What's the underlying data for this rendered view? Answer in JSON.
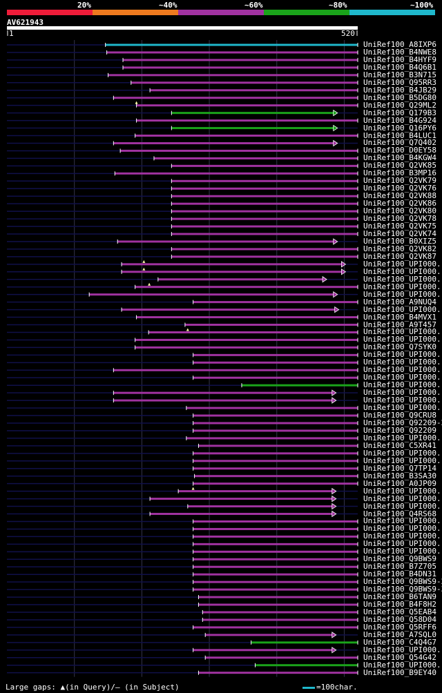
{
  "legend": {
    "labels": [
      "20%",
      "~40%",
      "~60%",
      "~80%",
      "~100%"
    ],
    "colors": [
      "#ee1c39",
      "#ee7a1f",
      "#a032a0",
      "#1aa31a",
      "#1fb8cc"
    ]
  },
  "query": {
    "id": "AV621943",
    "start": "1",
    "end": "520",
    "length": 520
  },
  "chart_data": {
    "type": "alignment-overview",
    "query_length": 520,
    "hits": [
      {
        "name": "UniRef100_A8IXP6",
        "start": 146,
        "end": 520,
        "color": "cyan",
        "arrow": false
      },
      {
        "name": "UniRef100_B4NWE8",
        "start": 148,
        "end": 520,
        "color": "purple",
        "arrow": false
      },
      {
        "name": "UniRef100_B4HYF9",
        "start": 172,
        "end": 520,
        "color": "purple",
        "arrow": false
      },
      {
        "name": "UniRef100_B4Q6B1",
        "start": 172,
        "end": 520,
        "color": "purple",
        "arrow": false
      },
      {
        "name": "UniRef100_B3N715",
        "start": 150,
        "end": 520,
        "color": "purple",
        "arrow": false
      },
      {
        "name": "UniRef100_Q95RR3",
        "start": 184,
        "end": 520,
        "color": "purple",
        "arrow": false
      },
      {
        "name": "UniRef100_B4JB29",
        "start": 212,
        "end": 520,
        "color": "purple",
        "arrow": false
      },
      {
        "name": "UniRef100_B5DG80",
        "start": 158,
        "end": 520,
        "color": "purple",
        "arrow": false
      },
      {
        "name": "UniRef100_Q29ML2",
        "start": 192,
        "end": 520,
        "color": "purple",
        "arrow": false,
        "gap": 192
      },
      {
        "name": "UniRef100_Q179B3",
        "start": 244,
        "end": 490,
        "color": "green",
        "arrow": true
      },
      {
        "name": "UniRef100_B4G924",
        "start": 192,
        "end": 520,
        "color": "purple",
        "arrow": false
      },
      {
        "name": "UniRef100_Q16PY6",
        "start": 244,
        "end": 490,
        "color": "green",
        "arrow": true
      },
      {
        "name": "UniRef100_B4LUC1",
        "start": 190,
        "end": 520,
        "color": "purple",
        "arrow": false
      },
      {
        "name": "UniRef100_Q7Q402",
        "start": 158,
        "end": 490,
        "color": "purple",
        "arrow": true
      },
      {
        "name": "UniRef100_D0EY58",
        "start": 168,
        "end": 520,
        "color": "purple",
        "arrow": false
      },
      {
        "name": "UniRef100_B4KGW4",
        "start": 218,
        "end": 520,
        "color": "purple",
        "arrow": false
      },
      {
        "name": "UniRef100_Q2VK85",
        "start": 244,
        "end": 520,
        "color": "purple",
        "arrow": false
      },
      {
        "name": "UniRef100_B3MP16",
        "start": 160,
        "end": 520,
        "color": "purple",
        "arrow": false
      },
      {
        "name": "UniRef100_Q2VK79",
        "start": 244,
        "end": 520,
        "color": "purple",
        "arrow": false
      },
      {
        "name": "UniRef100_Q2VK76",
        "start": 244,
        "end": 520,
        "color": "purple",
        "arrow": false
      },
      {
        "name": "UniRef100_Q2VK88",
        "start": 244,
        "end": 520,
        "color": "purple",
        "arrow": false
      },
      {
        "name": "UniRef100_Q2VK86",
        "start": 244,
        "end": 520,
        "color": "purple",
        "arrow": false
      },
      {
        "name": "UniRef100_Q2VK80",
        "start": 244,
        "end": 520,
        "color": "purple",
        "arrow": false
      },
      {
        "name": "UniRef100_Q2VK78",
        "start": 244,
        "end": 520,
        "color": "purple",
        "arrow": false
      },
      {
        "name": "UniRef100_Q2VK75",
        "start": 244,
        "end": 520,
        "color": "purple",
        "arrow": false
      },
      {
        "name": "UniRef100_Q2VK74",
        "start": 244,
        "end": 520,
        "color": "purple",
        "arrow": false
      },
      {
        "name": "UniRef100_B0XIZ5",
        "start": 164,
        "end": 490,
        "color": "purple",
        "arrow": true
      },
      {
        "name": "UniRef100_Q2VK82",
        "start": 244,
        "end": 520,
        "color": "purple",
        "arrow": false
      },
      {
        "name": "UniRef100_Q2VK87",
        "start": 244,
        "end": 520,
        "color": "purple",
        "arrow": false
      },
      {
        "name": "UniRef100_UPI000..",
        "start": 170,
        "end": 502,
        "color": "purple",
        "arrow": true,
        "gap": 203
      },
      {
        "name": "UniRef100_UPI000..",
        "start": 170,
        "end": 502,
        "color": "purple",
        "arrow": true,
        "gap": 203
      },
      {
        "name": "UniRef100_UPI000..",
        "start": 224,
        "end": 474,
        "color": "purple",
        "arrow": true
      },
      {
        "name": "UniRef100_UPI000..",
        "start": 190,
        "end": 520,
        "color": "purple",
        "arrow": false,
        "gap": 211
      },
      {
        "name": "UniRef100_UPI000..",
        "start": 122,
        "end": 490,
        "color": "purple",
        "arrow": true
      },
      {
        "name": "UniRef100_A9NUQ4",
        "start": 276,
        "end": 520,
        "color": "purple",
        "arrow": false
      },
      {
        "name": "UniRef100_UPI000..",
        "start": 170,
        "end": 492,
        "color": "purple",
        "arrow": true
      },
      {
        "name": "UniRef100_B4MVX1",
        "start": 192,
        "end": 520,
        "color": "purple",
        "arrow": false
      },
      {
        "name": "UniRef100_A9T457",
        "start": 264,
        "end": 520,
        "color": "purple",
        "arrow": false
      },
      {
        "name": "UniRef100_UPI000..",
        "start": 210,
        "end": 520,
        "color": "purple",
        "arrow": false,
        "gap": 268
      },
      {
        "name": "UniRef100_UPI000..",
        "start": 190,
        "end": 520,
        "color": "purple",
        "arrow": false
      },
      {
        "name": "UniRef100_Q7SYK0",
        "start": 190,
        "end": 520,
        "color": "purple",
        "arrow": false
      },
      {
        "name": "UniRef100_UPI000..",
        "start": 276,
        "end": 520,
        "color": "purple",
        "arrow": false
      },
      {
        "name": "UniRef100_UPI000..",
        "start": 276,
        "end": 520,
        "color": "purple",
        "arrow": false
      },
      {
        "name": "UniRef100_UPI000..",
        "start": 158,
        "end": 520,
        "color": "purple",
        "arrow": false
      },
      {
        "name": "UniRef100_UPI000..",
        "start": 276,
        "end": 520,
        "color": "purple",
        "arrow": false
      },
      {
        "name": "UniRef100_UPI000..",
        "start": 348,
        "end": 520,
        "color": "green",
        "arrow": false
      },
      {
        "name": "UniRef100_UPI000..",
        "start": 158,
        "end": 488,
        "color": "purple",
        "arrow": true
      },
      {
        "name": "UniRef100_UPI000..",
        "start": 158,
        "end": 488,
        "color": "purple",
        "arrow": true
      },
      {
        "name": "UniRef100_UPI000..",
        "start": 266,
        "end": 520,
        "color": "purple",
        "arrow": false
      },
      {
        "name": "UniRef100_Q9CRU8",
        "start": 276,
        "end": 520,
        "color": "purple",
        "arrow": false
      },
      {
        "name": "UniRef100_Q92209-2",
        "start": 276,
        "end": 520,
        "color": "purple",
        "arrow": false
      },
      {
        "name": "UniRef100_Q92209",
        "start": 276,
        "end": 520,
        "color": "purple",
        "arrow": false
      },
      {
        "name": "UniRef100_UPI000..",
        "start": 266,
        "end": 520,
        "color": "purple",
        "arrow": false
      },
      {
        "name": "UniRef100_C5XR41",
        "start": 284,
        "end": 520,
        "color": "purple",
        "arrow": false
      },
      {
        "name": "UniRef100_UPI000..",
        "start": 276,
        "end": 520,
        "color": "purple",
        "arrow": false
      },
      {
        "name": "UniRef100_UPI000..",
        "start": 276,
        "end": 520,
        "color": "purple",
        "arrow": false
      },
      {
        "name": "UniRef100_Q7TP14",
        "start": 276,
        "end": 520,
        "color": "purple",
        "arrow": false
      },
      {
        "name": "UniRef100_B3SA30",
        "start": 278,
        "end": 520,
        "color": "purple",
        "arrow": false
      },
      {
        "name": "UniRef100_A0JP09",
        "start": 276,
        "end": 520,
        "color": "purple",
        "arrow": false
      },
      {
        "name": "UniRef100_UPI000..",
        "start": 254,
        "end": 488,
        "color": "purple",
        "arrow": true,
        "gap": 276
      },
      {
        "name": "UniRef100_UPI000..",
        "start": 212,
        "end": 488,
        "color": "purple",
        "arrow": true
      },
      {
        "name": "UniRef100_UPI000..",
        "start": 268,
        "end": 488,
        "color": "purple",
        "arrow": true
      },
      {
        "name": "UniRef100_Q4RS68",
        "start": 212,
        "end": 488,
        "color": "purple",
        "arrow": true
      },
      {
        "name": "UniRef100_UPI000..",
        "start": 276,
        "end": 520,
        "color": "purple",
        "arrow": false
      },
      {
        "name": "UniRef100_UPI000..",
        "start": 276,
        "end": 520,
        "color": "purple",
        "arrow": false
      },
      {
        "name": "UniRef100_UPI000..",
        "start": 276,
        "end": 520,
        "color": "purple",
        "arrow": false
      },
      {
        "name": "UniRef100_UPI000..",
        "start": 276,
        "end": 520,
        "color": "purple",
        "arrow": false
      },
      {
        "name": "UniRef100_UPI000..",
        "start": 276,
        "end": 520,
        "color": "purple",
        "arrow": false
      },
      {
        "name": "UniRef100_Q9BWS9",
        "start": 276,
        "end": 520,
        "color": "purple",
        "arrow": false
      },
      {
        "name": "UniRef100_B7Z705",
        "start": 276,
        "end": 520,
        "color": "purple",
        "arrow": false
      },
      {
        "name": "UniRef100_B4DN31",
        "start": 276,
        "end": 520,
        "color": "purple",
        "arrow": false
      },
      {
        "name": "UniRef100_Q9BWS9-2",
        "start": 276,
        "end": 520,
        "color": "purple",
        "arrow": false
      },
      {
        "name": "UniRef100_Q9BWS9-3",
        "start": 276,
        "end": 520,
        "color": "purple",
        "arrow": false
      },
      {
        "name": "UniRef100_B6TAN9",
        "start": 284,
        "end": 520,
        "color": "purple",
        "arrow": false
      },
      {
        "name": "UniRef100_B4F8H2",
        "start": 284,
        "end": 520,
        "color": "purple",
        "arrow": false
      },
      {
        "name": "UniRef100_Q5EAB4",
        "start": 290,
        "end": 520,
        "color": "purple",
        "arrow": false
      },
      {
        "name": "UniRef100_Q58D04",
        "start": 290,
        "end": 520,
        "color": "purple",
        "arrow": false
      },
      {
        "name": "UniRef100_Q5RFF6",
        "start": 276,
        "end": 520,
        "color": "purple",
        "arrow": false
      },
      {
        "name": "UniRef100_A7SQL0",
        "start": 294,
        "end": 488,
        "color": "purple",
        "arrow": true
      },
      {
        "name": "UniRef100_C4Q4G7",
        "start": 362,
        "end": 520,
        "color": "green",
        "arrow": false
      },
      {
        "name": "UniRef100_UPI000..",
        "start": 276,
        "end": 488,
        "color": "purple",
        "arrow": true
      },
      {
        "name": "UniRef100_Q54G42",
        "start": 294,
        "end": 520,
        "color": "purple",
        "arrow": false
      },
      {
        "name": "UniRef100_UPI000..",
        "start": 368,
        "end": 520,
        "color": "green",
        "arrow": false
      },
      {
        "name": "UniRef100_B9EY40",
        "start": 284,
        "end": 520,
        "color": "purple",
        "arrow": false
      }
    ]
  },
  "footer": {
    "text": "Large gaps: ▲(in Query)/— (in Subject)"
  },
  "scale": {
    "text": "=100char."
  },
  "colors": {
    "purple": "#a032a0",
    "green": "#1aa31a",
    "cyan": "#1fb8cc",
    "track": "#10104a",
    "grid": "#33334d"
  }
}
